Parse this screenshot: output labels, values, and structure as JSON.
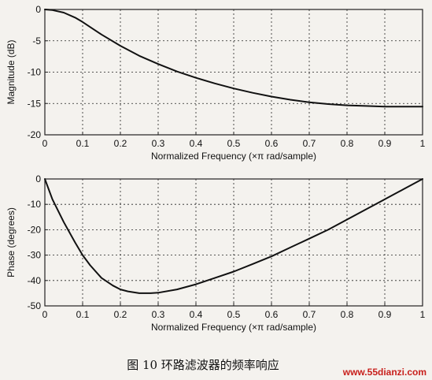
{
  "caption": "图 10  环路滤波器的频率响应",
  "watermark": "www.55dianzi.com",
  "colors": {
    "line": "#111111",
    "grid": "#222222",
    "watermark": "#c8201c",
    "background": "#f4f2ee"
  },
  "chart_data": [
    {
      "type": "line",
      "title": "",
      "xlabel": "Normalized Frequency  (×π rad/sample)",
      "ylabel": "Magnitude (dB)",
      "xlim": [
        0,
        1
      ],
      "ylim": [
        -20,
        0
      ],
      "xticks": [
        0,
        0.1,
        0.2,
        0.3,
        0.4,
        0.5,
        0.6,
        0.7,
        0.8,
        0.9,
        1
      ],
      "yticks": [
        0,
        -5,
        -10,
        -15,
        -20
      ],
      "grid": true,
      "x": [
        0,
        0.02,
        0.05,
        0.08,
        0.1,
        0.12,
        0.15,
        0.2,
        0.25,
        0.3,
        0.35,
        0.4,
        0.45,
        0.5,
        0.55,
        0.6,
        0.65,
        0.7,
        0.75,
        0.8,
        0.85,
        0.9,
        0.95,
        1.0
      ],
      "y": [
        0,
        -0.1,
        -0.5,
        -1.3,
        -2.0,
        -2.8,
        -4.0,
        -5.8,
        -7.4,
        -8.7,
        -9.9,
        -10.9,
        -11.8,
        -12.6,
        -13.3,
        -13.9,
        -14.4,
        -14.8,
        -15.1,
        -15.3,
        -15.4,
        -15.5,
        -15.5,
        -15.5
      ]
    },
    {
      "type": "line",
      "title": "",
      "xlabel": "Normalized Frequency  (×π rad/sample)",
      "ylabel": "Phase (degrees)",
      "xlim": [
        0,
        1
      ],
      "ylim": [
        -50,
        0
      ],
      "xticks": [
        0,
        0.1,
        0.2,
        0.3,
        0.4,
        0.5,
        0.6,
        0.7,
        0.8,
        0.9,
        1
      ],
      "yticks": [
        0,
        -10,
        -20,
        -30,
        -40,
        -50
      ],
      "grid": true,
      "x": [
        0,
        0.02,
        0.05,
        0.08,
        0.1,
        0.12,
        0.15,
        0.18,
        0.2,
        0.22,
        0.25,
        0.28,
        0.3,
        0.35,
        0.4,
        0.45,
        0.5,
        0.55,
        0.6,
        0.65,
        0.7,
        0.75,
        0.8,
        0.85,
        0.9,
        0.95,
        1.0
      ],
      "y": [
        0,
        -8,
        -17,
        -25,
        -30,
        -34,
        -39,
        -42,
        -43.5,
        -44.3,
        -45,
        -45,
        -44.8,
        -43.5,
        -41.5,
        -39,
        -36.5,
        -33.5,
        -30.5,
        -27,
        -23.5,
        -20,
        -16,
        -12,
        -8,
        -4,
        0
      ]
    }
  ]
}
